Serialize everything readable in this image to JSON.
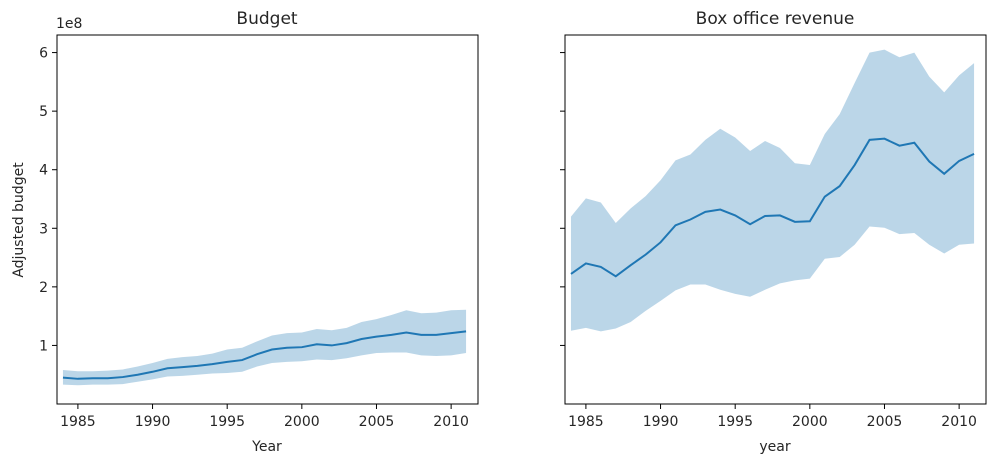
{
  "chart_data": [
    {
      "type": "line",
      "title": "Budget",
      "xlabel": "Year",
      "ylabel": "Adjusted budget",
      "y_scale_label": "1e8",
      "xlim": [
        1983.6,
        2011.8
      ],
      "ylim": [
        0,
        6.3
      ],
      "xticks": [
        "1985",
        "1990",
        "1995",
        "2000",
        "2005",
        "2010"
      ],
      "yticks": [
        "1",
        "2",
        "3",
        "4",
        "5",
        "6"
      ],
      "grid": false,
      "line_color": "#1f77b4",
      "band_color": "#1f77b4",
      "series": [
        {
          "x": [
            1984,
            1985,
            1986,
            1987,
            1988,
            1989,
            1990,
            1991,
            1992,
            1993,
            1994,
            1995,
            1996,
            1997,
            1998,
            1999,
            2000,
            2001,
            2002,
            2003,
            2004,
            2005,
            2006,
            2007,
            2008,
            2009,
            2010,
            2011
          ],
          "values": [
            0.45,
            0.43,
            0.44,
            0.44,
            0.46,
            0.5,
            0.55,
            0.61,
            0.63,
            0.65,
            0.68,
            0.72,
            0.75,
            0.85,
            0.93,
            0.96,
            0.97,
            1.02,
            1.0,
            1.04,
            1.11,
            1.15,
            1.18,
            1.22,
            1.18,
            1.18,
            1.21,
            1.24
          ],
          "lower": [
            0.33,
            0.32,
            0.33,
            0.33,
            0.34,
            0.38,
            0.42,
            0.47,
            0.48,
            0.5,
            0.52,
            0.53,
            0.55,
            0.64,
            0.7,
            0.72,
            0.73,
            0.76,
            0.75,
            0.78,
            0.83,
            0.87,
            0.88,
            0.88,
            0.83,
            0.82,
            0.83,
            0.87
          ],
          "upper": [
            0.58,
            0.56,
            0.56,
            0.57,
            0.59,
            0.64,
            0.7,
            0.77,
            0.8,
            0.82,
            0.86,
            0.93,
            0.96,
            1.07,
            1.17,
            1.21,
            1.22,
            1.28,
            1.26,
            1.3,
            1.4,
            1.45,
            1.52,
            1.6,
            1.55,
            1.56,
            1.6,
            1.61
          ]
        }
      ]
    },
    {
      "type": "line",
      "title": "Box office revenue",
      "xlabel": "year",
      "ylabel": "",
      "xlim": [
        1983.6,
        2011.8
      ],
      "ylim": [
        0,
        6.3
      ],
      "xticks": [
        "1985",
        "1990",
        "1995",
        "2000",
        "2005",
        "2010"
      ],
      "yticks": [],
      "grid": false,
      "line_color": "#1f77b4",
      "band_color": "#1f77b4",
      "series": [
        {
          "x": [
            1984,
            1985,
            1986,
            1987,
            1988,
            1989,
            1990,
            1991,
            1992,
            1993,
            1994,
            1995,
            1996,
            1997,
            1998,
            1999,
            2000,
            2001,
            2002,
            2003,
            2004,
            2005,
            2006,
            2007,
            2008,
            2009,
            2010,
            2011
          ],
          "values": [
            2.22,
            2.4,
            2.34,
            2.18,
            2.37,
            2.55,
            2.76,
            3.05,
            3.15,
            3.28,
            3.32,
            3.22,
            3.07,
            3.21,
            3.22,
            3.11,
            3.12,
            3.54,
            3.72,
            4.08,
            4.51,
            4.53,
            4.41,
            4.46,
            4.14,
            3.93,
            4.15,
            4.27
          ],
          "lower": [
            1.25,
            1.3,
            1.24,
            1.29,
            1.4,
            1.59,
            1.76,
            1.94,
            2.04,
            2.04,
            1.95,
            1.88,
            1.83,
            1.95,
            2.06,
            2.11,
            2.14,
            2.48,
            2.51,
            2.72,
            3.03,
            3.01,
            2.9,
            2.92,
            2.72,
            2.57,
            2.72,
            2.74
          ],
          "upper": [
            3.2,
            3.51,
            3.44,
            3.09,
            3.34,
            3.55,
            3.82,
            4.16,
            4.26,
            4.51,
            4.7,
            4.55,
            4.32,
            4.49,
            4.37,
            4.11,
            4.08,
            4.61,
            4.95,
            5.48,
            6.0,
            6.05,
            5.92,
            6.0,
            5.59,
            5.32,
            5.61,
            5.82
          ]
        }
      ]
    }
  ]
}
